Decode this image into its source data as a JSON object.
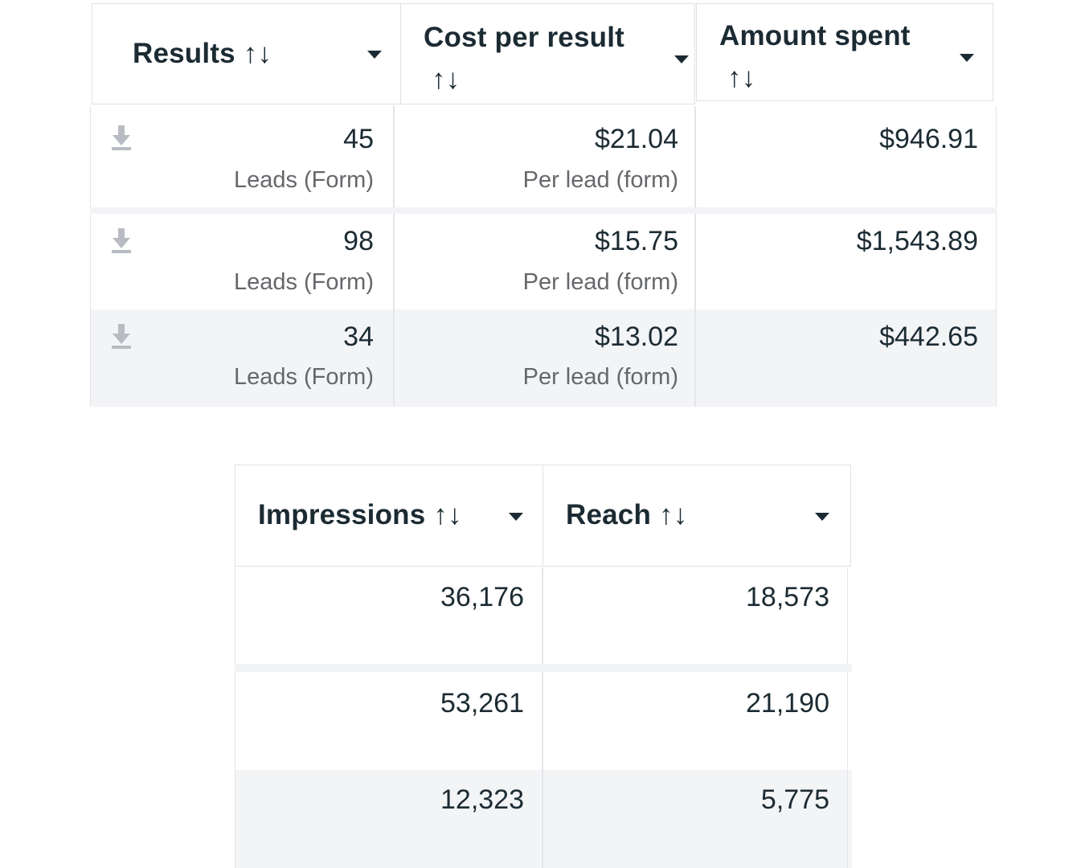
{
  "table1": {
    "columns": [
      {
        "label": "Results",
        "sort_glyph": "↑↓"
      },
      {
        "label": "Cost per result",
        "sort_glyph": "↑↓"
      },
      {
        "label": "Amount spent",
        "sort_glyph": "↑↓"
      }
    ],
    "rows": [
      {
        "results": "45",
        "results_sub": "Leads (Form)",
        "cost": "$21.04",
        "cost_sub": "Per lead (form)",
        "spent": "$946.91"
      },
      {
        "results": "98",
        "results_sub": "Leads (Form)",
        "cost": "$15.75",
        "cost_sub": "Per lead (form)",
        "spent": "$1,543.89"
      },
      {
        "results": "34",
        "results_sub": "Leads (Form)",
        "cost": "$13.02",
        "cost_sub": "Per lead (form)",
        "spent": "$442.65"
      }
    ]
  },
  "table2": {
    "columns": [
      {
        "label": "Impressions",
        "sort_glyph": "↑↓"
      },
      {
        "label": "Reach",
        "sort_glyph": "↑↓"
      }
    ],
    "rows": [
      {
        "impressions": "36,176",
        "reach": "18,573"
      },
      {
        "impressions": "53,261",
        "reach": "21,190"
      },
      {
        "impressions": "12,323",
        "reach": "5,775"
      }
    ]
  },
  "icons": {
    "download": "download-icon",
    "caret": "caret-down-icon"
  },
  "colors": {
    "text": "#1c2b33",
    "subtext": "#65676b",
    "row_shade": "#f3f4f6",
    "border": "#dfe2e5"
  }
}
